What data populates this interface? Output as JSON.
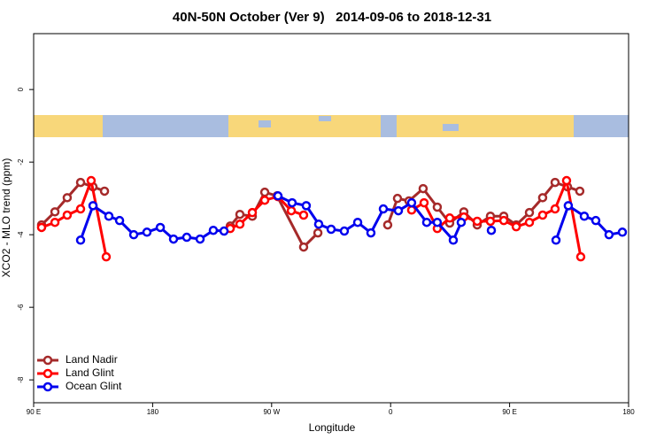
{
  "chart_data": {
    "type": "line",
    "title": "40N-50N October (Ver 9)   2014-09-06 to 2018-12-31",
    "x_label": "Longitude",
    "y_label": "XCO2 - MLO trend (ppm)",
    "xlim": [
      90,
      540
    ],
    "xticks": [
      {
        "value": 90,
        "label": "90 E"
      },
      180,
      {
        "value": 270,
        "label": "90 W"
      },
      {
        "value": 360,
        "label": "0"
      },
      {
        "value": 450,
        "label": "90 E"
      },
      180
    ],
    "ylim": [
      -8.63,
      1.54
    ],
    "yticks": [
      0,
      -2,
      -4,
      -6,
      -8
    ],
    "legend": "bottom-left",
    "series": [
      {
        "name": "Land Nadir",
        "color": "#a52a2a",
        "x": [
          96.0,
          106.1,
          115.4,
          125.5,
          134.9,
          143.6,
          null,
          238.7,
          246.0,
          255.4,
          264.8,
          274.1,
          294.2,
          305.0,
          null,
          357.8,
          365.2,
          373.9,
          384.6,
          395.3,
          404.7,
          415.4,
          425.5,
          435.5,
          445.6,
          455.0,
          465.0,
          475.0,
          484.4,
          493.8,
          503.1
        ],
        "values": [
          -3.73,
          -3.37,
          -2.98,
          -2.56,
          -2.68,
          -2.8,
          null,
          -3.76,
          -3.44,
          -3.49,
          -2.83,
          -2.93,
          -4.34,
          -3.95,
          null,
          -3.73,
          -3.0,
          -3.07,
          -2.73,
          -3.24,
          -3.68,
          -3.37,
          -3.73,
          -3.49,
          -3.49,
          -3.73,
          -3.39,
          -2.98,
          -2.56,
          -2.68,
          -2.8
        ]
      },
      {
        "name": "Land Glint",
        "color": "#ff0000",
        "x": [
          96.0,
          106.1,
          115.4,
          125.5,
          133.5,
          144.9,
          null,
          238.7,
          246.0,
          255.4,
          264.8,
          274.8,
          284.9,
          294.2,
          null,
          375.9,
          385.3,
          395.3,
          404.7,
          415.4,
          425.5,
          435.5,
          445.6,
          455.0,
          465.0,
          475.0,
          484.4,
          493.1,
          503.8
        ],
        "values": [
          -3.8,
          -3.66,
          -3.46,
          -3.29,
          -2.51,
          -4.61,
          null,
          -3.83,
          -3.71,
          -3.39,
          -3.05,
          -2.95,
          -3.34,
          -3.46,
          null,
          -3.32,
          -3.12,
          -3.83,
          -3.54,
          -3.51,
          -3.63,
          -3.63,
          -3.61,
          -3.78,
          -3.66,
          -3.46,
          -3.29,
          -2.51,
          -4.61
        ]
      },
      {
        "name": "Ocean Glint",
        "color": "#0000ee",
        "x": [
          125.5,
          134.9,
          146.9,
          155.0,
          165.7,
          175.7,
          185.8,
          195.8,
          205.8,
          215.9,
          225.9,
          234.0,
          null,
          274.8,
          285.5,
          296.2,
          305.6,
          315.0,
          325.0,
          335.1,
          345.1,
          354.5,
          365.9,
          375.9,
          387.3,
          395.3,
          407.4,
          413.4,
          null,
          436.2,
          null,
          485.1,
          494.4,
          506.5,
          515.2,
          525.2,
          535.3
        ],
        "values": [
          -4.15,
          -3.2,
          -3.49,
          -3.61,
          -4.0,
          -3.93,
          -3.8,
          -4.12,
          -4.07,
          -4.12,
          -3.88,
          -3.9,
          null,
          -2.93,
          -3.12,
          -3.2,
          -3.71,
          -3.85,
          -3.9,
          -3.66,
          -3.95,
          -3.29,
          -3.34,
          -3.12,
          -3.66,
          -3.66,
          -4.15,
          -3.66,
          null,
          -3.88,
          null,
          -4.15,
          -3.2,
          -3.49,
          -3.61,
          -4.0,
          -3.93
        ]
      }
    ]
  }
}
